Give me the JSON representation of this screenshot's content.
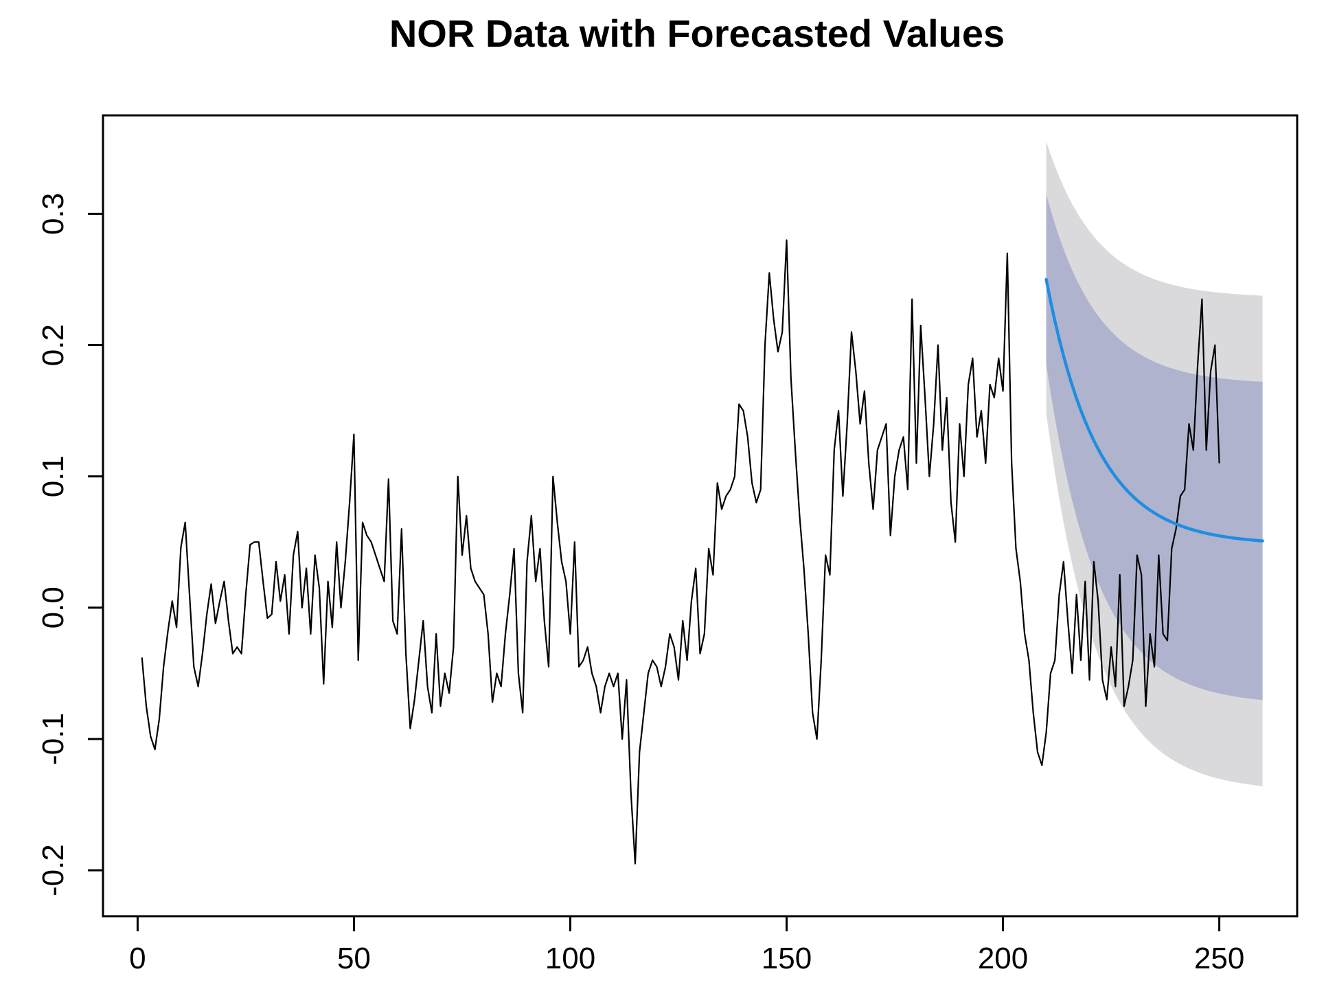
{
  "chart_data": {
    "type": "line",
    "title": "NOR Data with Forecasted Values",
    "xlabel": "",
    "ylabel": "",
    "xlim": [
      -8,
      268
    ],
    "ylim": [
      -0.235,
      0.375
    ],
    "x_ticks": [
      0,
      50,
      100,
      150,
      200,
      250
    ],
    "y_ticks": [
      -0.2,
      -0.1,
      0.0,
      0.1,
      0.2,
      0.3
    ],
    "x_tick_labels": [
      "0",
      "50",
      "100",
      "150",
      "200",
      "250"
    ],
    "y_tick_labels": [
      "-0.2",
      "-0.1",
      "0.0",
      "0.1",
      "0.2",
      "0.3"
    ],
    "colors": {
      "data_line": "#000000",
      "forecast_line": "#1f8ee0",
      "band_80": "#b0b3cd",
      "band_95": "#dadadd"
    },
    "series": [
      {
        "name": "NOR",
        "x_start": 1,
        "values": [
          -0.038,
          -0.075,
          -0.098,
          -0.108,
          -0.085,
          -0.045,
          -0.018,
          0.005,
          -0.015,
          0.046,
          0.065,
          0.01,
          -0.045,
          -0.06,
          -0.035,
          -0.005,
          0.018,
          -0.012,
          0.005,
          0.02,
          -0.01,
          -0.035,
          -0.03,
          -0.035,
          0.01,
          0.048,
          0.05,
          0.05,
          0.02,
          -0.008,
          -0.005,
          0.035,
          0.005,
          0.025,
          -0.02,
          0.04,
          0.058,
          0.0,
          0.03,
          -0.02,
          0.04,
          0.015,
          -0.058,
          0.02,
          -0.015,
          0.05,
          0.0,
          0.035,
          0.08,
          0.132,
          -0.04,
          0.065,
          0.055,
          0.05,
          0.04,
          0.03,
          0.02,
          0.098,
          -0.01,
          -0.02,
          0.06,
          -0.035,
          -0.092,
          -0.07,
          -0.04,
          -0.01,
          -0.06,
          -0.08,
          -0.02,
          -0.075,
          -0.05,
          -0.065,
          -0.03,
          0.1,
          0.04,
          0.07,
          0.03,
          0.02,
          0.015,
          0.01,
          -0.02,
          -0.072,
          -0.05,
          -0.06,
          -0.02,
          0.01,
          0.045,
          -0.05,
          -0.08,
          0.035,
          0.07,
          0.02,
          0.045,
          -0.01,
          -0.045,
          0.1,
          0.065,
          0.035,
          0.02,
          -0.02,
          0.05,
          -0.045,
          -0.04,
          -0.03,
          -0.05,
          -0.06,
          -0.08,
          -0.06,
          -0.05,
          -0.06,
          -0.05,
          -0.1,
          -0.055,
          -0.14,
          -0.195,
          -0.11,
          -0.08,
          -0.05,
          -0.04,
          -0.045,
          -0.06,
          -0.045,
          -0.02,
          -0.03,
          -0.055,
          -0.01,
          -0.04,
          0.005,
          0.03,
          -0.035,
          -0.02,
          0.045,
          0.025,
          0.095,
          0.075,
          0.085,
          0.09,
          0.1,
          0.155,
          0.15,
          0.13,
          0.095,
          0.08,
          0.09,
          0.2,
          0.255,
          0.22,
          0.195,
          0.21,
          0.28,
          0.175,
          0.12,
          0.07,
          0.03,
          -0.02,
          -0.08,
          -0.1,
          -0.04,
          0.04,
          0.025,
          0.12,
          0.15,
          0.085,
          0.14,
          0.21,
          0.18,
          0.14,
          0.165,
          0.11,
          0.075,
          0.12,
          0.13,
          0.14,
          0.055,
          0.1,
          0.12,
          0.13,
          0.09,
          0.235,
          0.11,
          0.215,
          0.16,
          0.1,
          0.14,
          0.2,
          0.12,
          0.16,
          0.08,
          0.05,
          0.14,
          0.1,
          0.17,
          0.19,
          0.13,
          0.15,
          0.11,
          0.17,
          0.16,
          0.19,
          0.165,
          0.27,
          0.11,
          0.045,
          0.02,
          -0.02,
          -0.04,
          -0.08,
          -0.11,
          -0.12,
          -0.095,
          -0.05,
          -0.04,
          0.01,
          0.035,
          -0.01,
          -0.05,
          0.01,
          -0.04,
          0.02,
          -0.055,
          0.035,
          0.005,
          -0.055,
          -0.07,
          -0.03,
          -0.06,
          0.025,
          -0.075,
          -0.06,
          -0.04,
          0.04,
          0.025,
          -0.075,
          -0.02,
          -0.045,
          0.04,
          -0.02,
          -0.025,
          0.045,
          0.06,
          0.085,
          0.09,
          0.14,
          0.12,
          0.185,
          0.235,
          0.12,
          0.18,
          0.2,
          0.11
        ]
      }
    ],
    "forecast": {
      "x_start": 210,
      "x_end": 260,
      "start_value": 0.25,
      "asymptote": 0.048,
      "decay_rate": 0.085,
      "band_80": {
        "upper_start": 0.315,
        "upper_end": 0.17,
        "lower_start": 0.185,
        "lower_end": -0.074
      },
      "band_95": {
        "upper_start": 0.355,
        "upper_end": 0.236,
        "lower_start": 0.148,
        "lower_end": -0.14
      }
    }
  }
}
